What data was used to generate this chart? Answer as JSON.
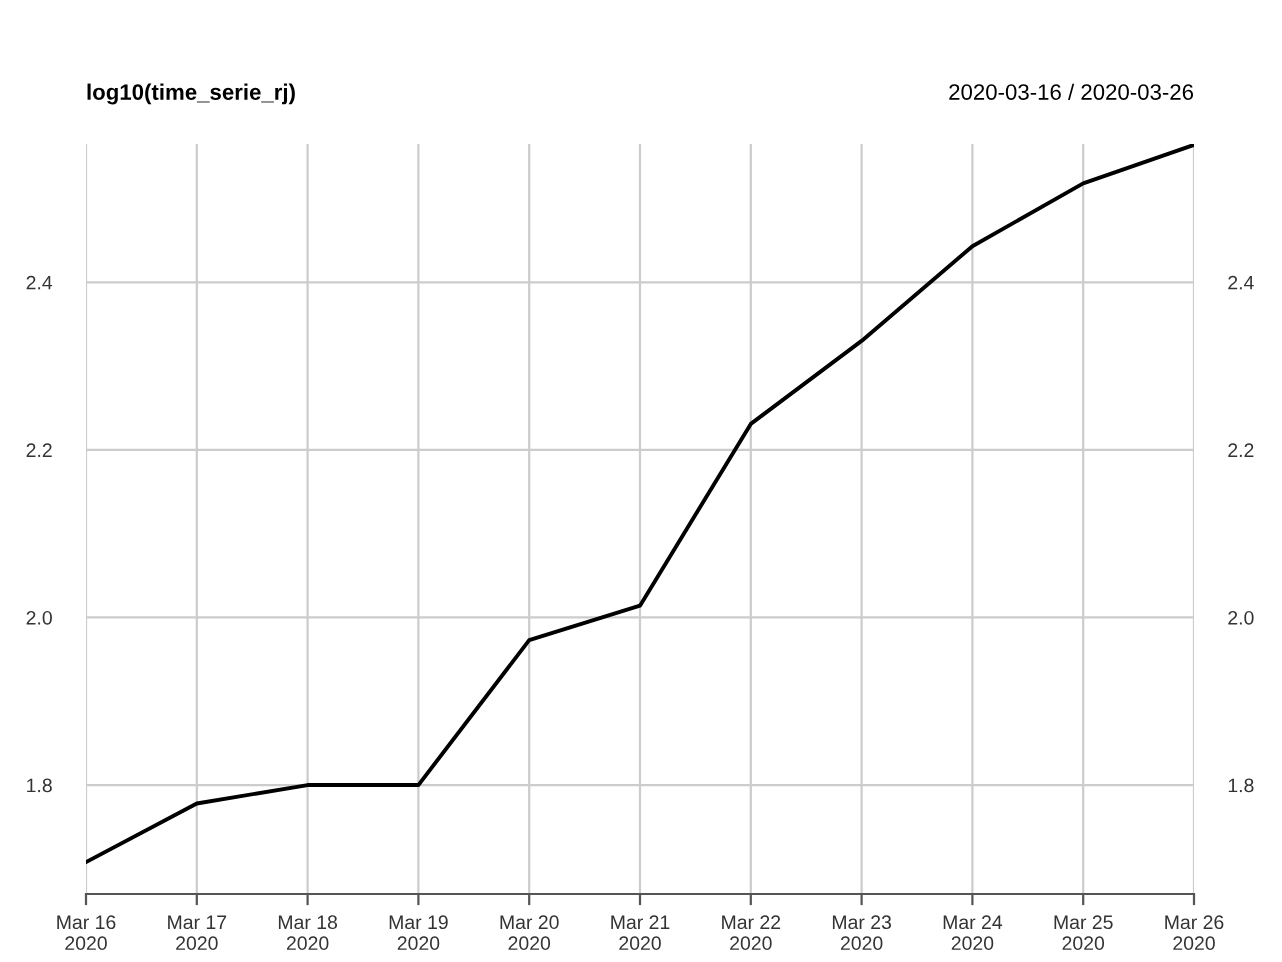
{
  "chart_data": {
    "type": "line",
    "title": "log10(time_serie_rj)",
    "subtitle": "2020-03-16 / 2020-03-26",
    "x": [
      "2020-03-16",
      "2020-03-17",
      "2020-03-18",
      "2020-03-19",
      "2020-03-20",
      "2020-03-21",
      "2020-03-22",
      "2020-03-23",
      "2020-03-24",
      "2020-03-25",
      "2020-03-26"
    ],
    "series": [
      {
        "color": "#000000",
        "values": [
          1.708,
          1.778,
          1.8,
          1.8,
          1.973,
          2.014,
          2.231,
          2.33,
          2.443,
          2.518,
          2.564
        ]
      }
    ],
    "xlim": [
      "2020-03-16",
      "2020-03-26"
    ],
    "xticks": [
      {
        "value": "2020-03-16",
        "label": "Mar 16\n2020"
      },
      {
        "value": "2020-03-17",
        "label": "Mar 17\n2020"
      },
      {
        "value": "2020-03-18",
        "label": "Mar 18\n2020"
      },
      {
        "value": "2020-03-19",
        "label": "Mar 19\n2020"
      },
      {
        "value": "2020-03-20",
        "label": "Mar 20\n2020"
      },
      {
        "value": "2020-03-21",
        "label": "Mar 21\n2020"
      },
      {
        "value": "2020-03-22",
        "label": "Mar 22\n2020"
      },
      {
        "value": "2020-03-23",
        "label": "Mar 23\n2020"
      },
      {
        "value": "2020-03-24",
        "label": "Mar 24\n2020"
      },
      {
        "value": "2020-03-25",
        "label": "Mar 25\n2020"
      },
      {
        "value": "2020-03-26",
        "label": "Mar 26\n2020"
      }
    ],
    "ylim": [
      1.67,
      2.565
    ],
    "yticks": [
      {
        "value": 1.8,
        "label": "1.8"
      },
      {
        "value": 2.0,
        "label": "2.0"
      },
      {
        "value": 2.2,
        "label": "2.2"
      },
      {
        "value": 2.4,
        "label": "2.4"
      }
    ],
    "y2lim": [
      1.67,
      2.565
    ],
    "y2ticks": [
      {
        "value": 1.8,
        "label": "1.8"
      },
      {
        "value": 2.0,
        "label": "2.0"
      },
      {
        "value": 2.2,
        "label": "2.2"
      },
      {
        "value": 2.4,
        "label": "2.4"
      }
    ],
    "grid": true,
    "line_style": "solid",
    "marker": "none"
  }
}
